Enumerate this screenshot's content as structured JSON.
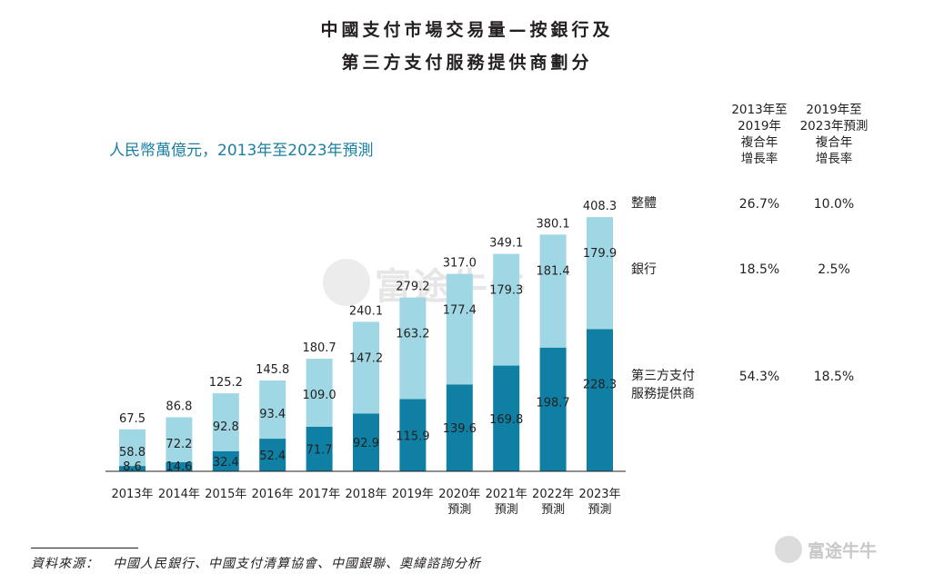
{
  "title_line1": "中國支付市場交易量—按銀行及",
  "title_line2": "第三方支付服務提供商劃分",
  "subtitle": "人民幣萬億元，2013年至2023年預測",
  "table_headers": {
    "col1": [
      "2013年至",
      "2019年",
      "複合年",
      "增長率"
    ],
    "col2": [
      "2019年至",
      "2023年預測",
      "複合年",
      "增長率"
    ]
  },
  "rows": [
    {
      "label": [
        "整體"
      ],
      "cagr_2013_2019": "26.7%",
      "cagr_2019_2023": "10.0%"
    },
    {
      "label": [
        "銀行"
      ],
      "cagr_2013_2019": "18.5%",
      "cagr_2019_2023": "2.5%"
    },
    {
      "label": [
        "第三方支付",
        "服務提供商"
      ],
      "cagr_2013_2019": "54.3%",
      "cagr_2019_2023": "18.5%"
    }
  ],
  "source": "資料來源：　中國人民銀行、中國支付清算協會、中國銀聯、奧緯諮詢分析",
  "watermark": "富途牛牛",
  "colors": {
    "bank": "#9fd7e4",
    "third_party": "#0f80a3",
    "accent": "#1a7fa1"
  },
  "chart_data": {
    "type": "bar",
    "stacked": true,
    "categories": [
      [
        "2013年"
      ],
      [
        "2014年"
      ],
      [
        "2015年"
      ],
      [
        "2016年"
      ],
      [
        "2017年"
      ],
      [
        "2018年"
      ],
      [
        "2019年"
      ],
      [
        "2020年",
        "預測"
      ],
      [
        "2021年",
        "預測"
      ],
      [
        "2022年",
        "預測"
      ],
      [
        "2023年",
        "預測"
      ]
    ],
    "series": [
      {
        "values": [
          8.6,
          14.6,
          32.4,
          52.4,
          71.7,
          92.9,
          115.9,
          139.6,
          169.8,
          198.7,
          228.3
        ]
      },
      {
        "values": [
          58.8,
          72.2,
          92.8,
          93.4,
          109.0,
          147.2,
          163.2,
          177.4,
          179.3,
          181.4,
          179.9
        ]
      }
    ],
    "totals": [
      67.5,
      86.8,
      125.2,
      145.8,
      180.7,
      240.1,
      279.2,
      317.0,
      349.1,
      380.1,
      408.3
    ],
    "ylim": [
      0,
      408.3
    ],
    "grid": false,
    "legend": "right"
  }
}
